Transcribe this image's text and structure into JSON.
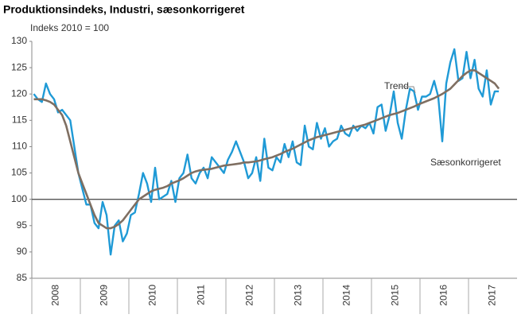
{
  "chart_data": {
    "type": "line",
    "title": "Produktionsindeks, Industri, sæsonkorrigeret",
    "subtitle": "Indeks 2010 = 100",
    "categories": [
      null,
      null,
      null,
      null,
      null,
      null,
      "2008",
      null,
      null,
      null,
      null,
      null,
      null,
      null,
      null,
      null,
      null,
      null,
      "2009",
      null,
      null,
      null,
      null,
      null,
      null,
      null,
      null,
      null,
      null,
      null,
      "2010",
      null,
      null,
      null,
      null,
      null,
      null,
      null,
      null,
      null,
      null,
      null,
      "2011",
      null,
      null,
      null,
      null,
      null,
      null,
      null,
      null,
      null,
      null,
      null,
      "2012",
      null,
      null,
      null,
      null,
      null,
      null,
      null,
      null,
      null,
      null,
      null,
      "2013",
      null,
      null,
      null,
      null,
      null,
      null,
      null,
      null,
      null,
      null,
      null,
      "2014",
      null,
      null,
      null,
      null,
      null,
      null,
      null,
      null,
      null,
      null,
      null,
      "2015",
      null,
      null,
      null,
      null,
      null,
      null,
      null,
      null,
      null,
      null,
      null,
      "2016",
      null,
      null,
      null,
      null,
      null,
      null,
      null,
      null,
      null,
      null,
      null,
      "2017",
      null
    ],
    "series": [
      {
        "name": "Sæsonkorrigeret",
        "color": "#1f9ad6",
        "values": [
          120,
          119,
          118.5,
          122,
          120,
          119,
          116.5,
          117,
          116,
          115,
          110,
          105,
          102,
          99,
          99,
          95.5,
          94.5,
          99.5,
          97,
          89.5,
          95,
          96,
          92,
          93.5,
          97,
          97.5,
          101,
          105,
          103,
          99.5,
          106,
          100,
          100.5,
          101,
          103.5,
          99.5,
          104,
          105,
          108.5,
          104,
          103,
          105,
          106,
          104,
          108,
          107,
          106,
          105,
          107.5,
          109,
          111,
          109,
          107,
          104,
          105,
          108,
          103.5,
          111.5,
          106,
          105.5,
          108,
          107,
          110.5,
          108,
          111,
          107,
          106.5,
          114,
          110,
          109.5,
          114.5,
          111.5,
          113.5,
          110,
          111,
          111.5,
          114,
          112.5,
          112,
          114,
          113,
          114,
          113.5,
          114.5,
          112.5,
          117.5,
          118,
          113,
          116,
          120.5,
          114.5,
          111.5,
          117,
          121,
          120.5,
          117,
          119.5,
          119.5,
          120,
          122.5,
          119.5,
          111,
          122,
          126,
          128.5,
          122.5,
          123,
          128,
          123,
          126.5,
          121,
          119.5,
          124.5,
          118,
          120.5,
          120.5
        ]
      },
      {
        "name": "Trend",
        "color": "#7f6f62",
        "values": [
          119,
          119,
          119,
          118.8,
          118.5,
          118,
          117,
          116,
          114,
          111,
          108,
          105,
          103,
          101,
          99,
          97,
          95.5,
          95,
          94.5,
          94.5,
          94.8,
          95.3,
          96,
          97,
          98,
          99,
          100,
          100.5,
          101,
          101.5,
          101.8,
          102,
          102.2,
          102.5,
          103,
          103.3,
          103.6,
          104,
          104.5,
          105,
          105.3,
          105.5,
          105.6,
          105.7,
          105.8,
          106,
          106.2,
          106.4,
          106.5,
          106.6,
          106.7,
          106.8,
          107,
          107,
          107.1,
          107.2,
          107.4,
          107.6,
          107.8,
          108,
          108.3,
          108.6,
          109,
          109.3,
          109.6,
          110,
          110.4,
          110.8,
          111.2,
          111.5,
          111.8,
          112,
          112.2,
          112.4,
          112.6,
          112.8,
          113,
          113.2,
          113.4,
          113.6,
          113.8,
          114,
          114.2,
          114.5,
          114.8,
          115.1,
          115.4,
          115.7,
          116,
          116.2,
          116.4,
          116.7,
          117,
          117.3,
          117.6,
          118,
          118.3,
          118.6,
          118.9,
          119.2,
          119.6,
          120,
          120.5,
          121,
          121.8,
          122.6,
          123.4,
          124,
          124.5,
          124.5,
          124,
          123.5,
          123,
          122.5,
          122,
          121
        ]
      }
    ],
    "ylim": [
      85,
      130
    ],
    "yticks": [
      85,
      90,
      95,
      100,
      105,
      110,
      115,
      120,
      125,
      130
    ],
    "reference_line": 100,
    "grid": false
  }
}
